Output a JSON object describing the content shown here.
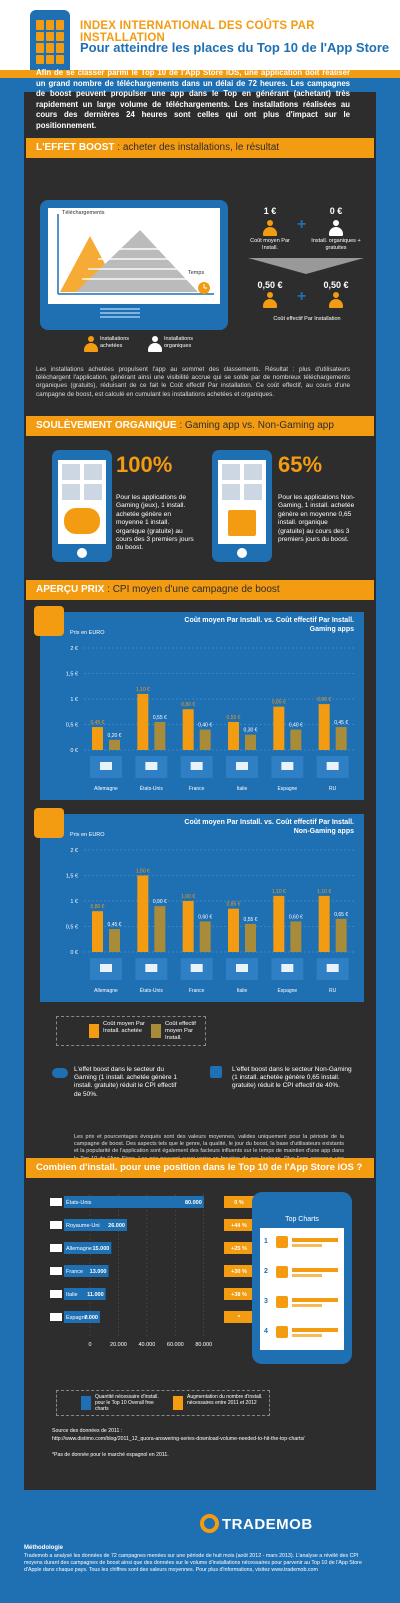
{
  "header": {
    "title": "INDEX INTERNATIONAL DES COÛTS PAR INSTALLATION",
    "subtitle": "Pour atteindre les places du Top 10 de l'App Store"
  },
  "intro": "Afin de se classer parmi le Top 10 de l'App Store iOS, une application doit réaliser un grand nombre de téléchargements dans un délai de 72 heures. Les campagnes de boost peuvent propulser une app dans le Top en générant (achetant) très rapidement un large volume de téléchargements. Les installations réalisées au cours des dernières 24 heures sont celles qui ont plus d'impact sur le positionnement.",
  "section1": {
    "pre": "L'EFFET BOOST",
    "post": " : acheter des installations, le résultat"
  },
  "boost": {
    "y_label": "Téléchargements",
    "x_label": "Temps",
    "bought_label": "Installations achetées",
    "organic_label": "Installations organiques",
    "cpi_value": "1 €",
    "cpi_label": "Coût moyen Par Install.",
    "organic_value": "0 €",
    "organic_cost_label": "Install. organiques + gratuites",
    "eff1": "0,50 €",
    "eff2": "0,50 €",
    "eff_label": "Coût effectif Par Installation"
  },
  "para1": "Les installations achetées propulsent l'app au sommet des classements. Résultat : plus d'utilisateurs téléchargent l'application, générant ainsi une visibilité accrue qui se solde par de nombreux téléchargements organiques (gratuits), réduisant de ce fait le Coût effectif Par installation. Ce coût effectif, au cours d'une campagne de boost, est calculé en cumulant les installations achetées et organiques.",
  "section2": {
    "pre": "SOULÈVEMENT ORGANIQUE",
    "post": " : Gaming app vs. Non-Gaming app"
  },
  "gaming": {
    "pct": "100%",
    "text": "Pour les applications de Gaming (jeux), 1 install. achetée génère en moyenne 1 install. organique (gratuite) au cours des 3 premiers jours du boost."
  },
  "nongaming": {
    "pct": "65%",
    "text": "Pour les applications Non-Gaming, 1 install. achetée génère en moyenne 0,65 install. organique (gratuite) au cours des 3 premiers jours du boost."
  },
  "section3": {
    "pre": "APERÇU PRIX",
    "post": " : CPI moyen d'une campagne de boost"
  },
  "chart_data": [
    {
      "type": "bar",
      "title": "Coût moyen Par Install. vs. Coût effectif Par Install. Gaming apps",
      "ylabel": "Prix en EURO",
      "ylim": [
        0,
        2
      ],
      "yticks": [
        "0 €",
        "0,5 €",
        "1 €",
        "1,5 €",
        "2 €"
      ],
      "categories": [
        "Allemagne",
        "États-Unis",
        "France",
        "Italie",
        "Espagne",
        "RU"
      ],
      "series": [
        {
          "name": "Coût moyen Par Install. achetée",
          "values": [
            0.45,
            1.1,
            0.8,
            0.55,
            0.85,
            0.9
          ],
          "labels": [
            "0,45 €",
            "1,10 €",
            "0,80 €",
            "0,55 €",
            "0,85 €",
            "0,90 €"
          ]
        },
        {
          "name": "Coût effectif moyen Par Install.",
          "values": [
            0.2,
            0.55,
            0.4,
            0.3,
            0.4,
            0.45
          ],
          "labels": [
            "0,20 €",
            "0,55 €",
            "0,40 €",
            "0,30 €",
            "0,40 €",
            "0,45 €"
          ]
        }
      ]
    },
    {
      "type": "bar",
      "title": "Coût moyen Par Install. vs. Coût effectif Par Install. Non-Gaming apps",
      "ylabel": "Prix en EURO",
      "ylim": [
        0,
        2
      ],
      "yticks": [
        "0 €",
        "0,5 €",
        "1 €",
        "1,5 €",
        "2 €"
      ],
      "categories": [
        "Allemagne",
        "États-Unis",
        "France",
        "Italie",
        "Espagne",
        "RU"
      ],
      "series": [
        {
          "name": "Coût moyen Par Install. achetée",
          "values": [
            0.8,
            1.5,
            1.0,
            0.85,
            1.1,
            1.1
          ],
          "labels": [
            "0,80 €",
            "1,50 €",
            "1,00 €",
            "0,85 €",
            "1,10 €",
            "1,10 €"
          ]
        },
        {
          "name": "Coût effectif moyen Par Install.",
          "values": [
            0.45,
            0.9,
            0.6,
            0.55,
            0.6,
            0.65
          ],
          "labels": [
            "0,45 €",
            "0,90 €",
            "0,60 €",
            "0,55 €",
            "0,60 €",
            "0,65 €"
          ]
        }
      ]
    },
    {
      "type": "bar",
      "orientation": "horizontal",
      "title": "",
      "categories": [
        "États-Unis",
        "Royaume-Uni",
        "Allemagne",
        "France",
        "Italie",
        "Espagne"
      ],
      "xticks": [
        "0",
        "20.000",
        "40.000",
        "60.000",
        "80.000"
      ],
      "xlim": [
        0,
        90000
      ],
      "series": [
        {
          "name": "Quantité nécessaire d'install. pour le Top 10 Overall free charts",
          "values": [
            80000,
            26000,
            15000,
            13000,
            11000,
            7000
          ],
          "labels": [
            "80.000",
            "26.000",
            "15.000",
            "13.000",
            "11.000",
            "7.000"
          ]
        },
        {
          "name": "Augmentation du nombre d'install. nécessaires entre 2011 et 2012",
          "labels": [
            "0 %",
            "+44 %",
            "+25 %",
            "+30 %",
            "+38 %",
            "*"
          ]
        }
      ]
    }
  ],
  "legend": {
    "a": "Coût moyen Par Install. achetée",
    "b": "Coût effectif moyen Par Install."
  },
  "note_gaming": "L'effet boost dans le secteur du Gaming (1 install. achetée génère 1 install. gratuite) réduit le CPI effectif de 50%.",
  "note_nongaming": "L'effet boost dans le secteur Non-Gaming (1 install. achetée génère 0,65 install. gratuite) réduit le CPI effectif de 40%.",
  "disclaimer": "Les prix et pourcentages évoqués sont des valeurs moyennes, valides uniquement pour la période de la campagne de boost. Des aspects tels que le genre, la qualité, le jour du boost, la base d'utilisateurs existants et la popularité de l'application sont également des facteurs influents sur le temps de maintien d'une app dans le Top 10 de l'App Store. Les prix peuvent aussi varier en fonction de ces facteurs. Plus l'app conserve une position dans le Top, plus elle générera des téléchargements organiques.",
  "section4": "Combien d'install. pour une position dans le Top 10 de l'App Store iOS ?",
  "top_charts_label": "Top Charts",
  "top_charts_rows": [
    "1",
    "2",
    "3",
    "4"
  ],
  "source_h": "Source des données de 2011 :",
  "source_url": "http://www.distimo.com/blog/2011_12_quora-answering-series-download-volume-needed-to-hit-the-top-charts/",
  "source_note": "*Pas de donnée pour le marché espagnol en 2011.",
  "brand": "TRADEMOB",
  "method_h": "Méthodologie",
  "method": "Trademob a analysé les données de 72 campagnes menées sur une période de huit mois (août 2012 - mars 2013). L'analyse a révélé des CPI moyens durant des campagnes de boost ainsi que des données sur le volume d'installations nécessaires pour parvenir au Top 10 de l'App Store d'Apple dans chaque pays. Tous les chiffres sont des valeurs moyennes. Pour plus d'informations, visitez www.trademob.com"
}
